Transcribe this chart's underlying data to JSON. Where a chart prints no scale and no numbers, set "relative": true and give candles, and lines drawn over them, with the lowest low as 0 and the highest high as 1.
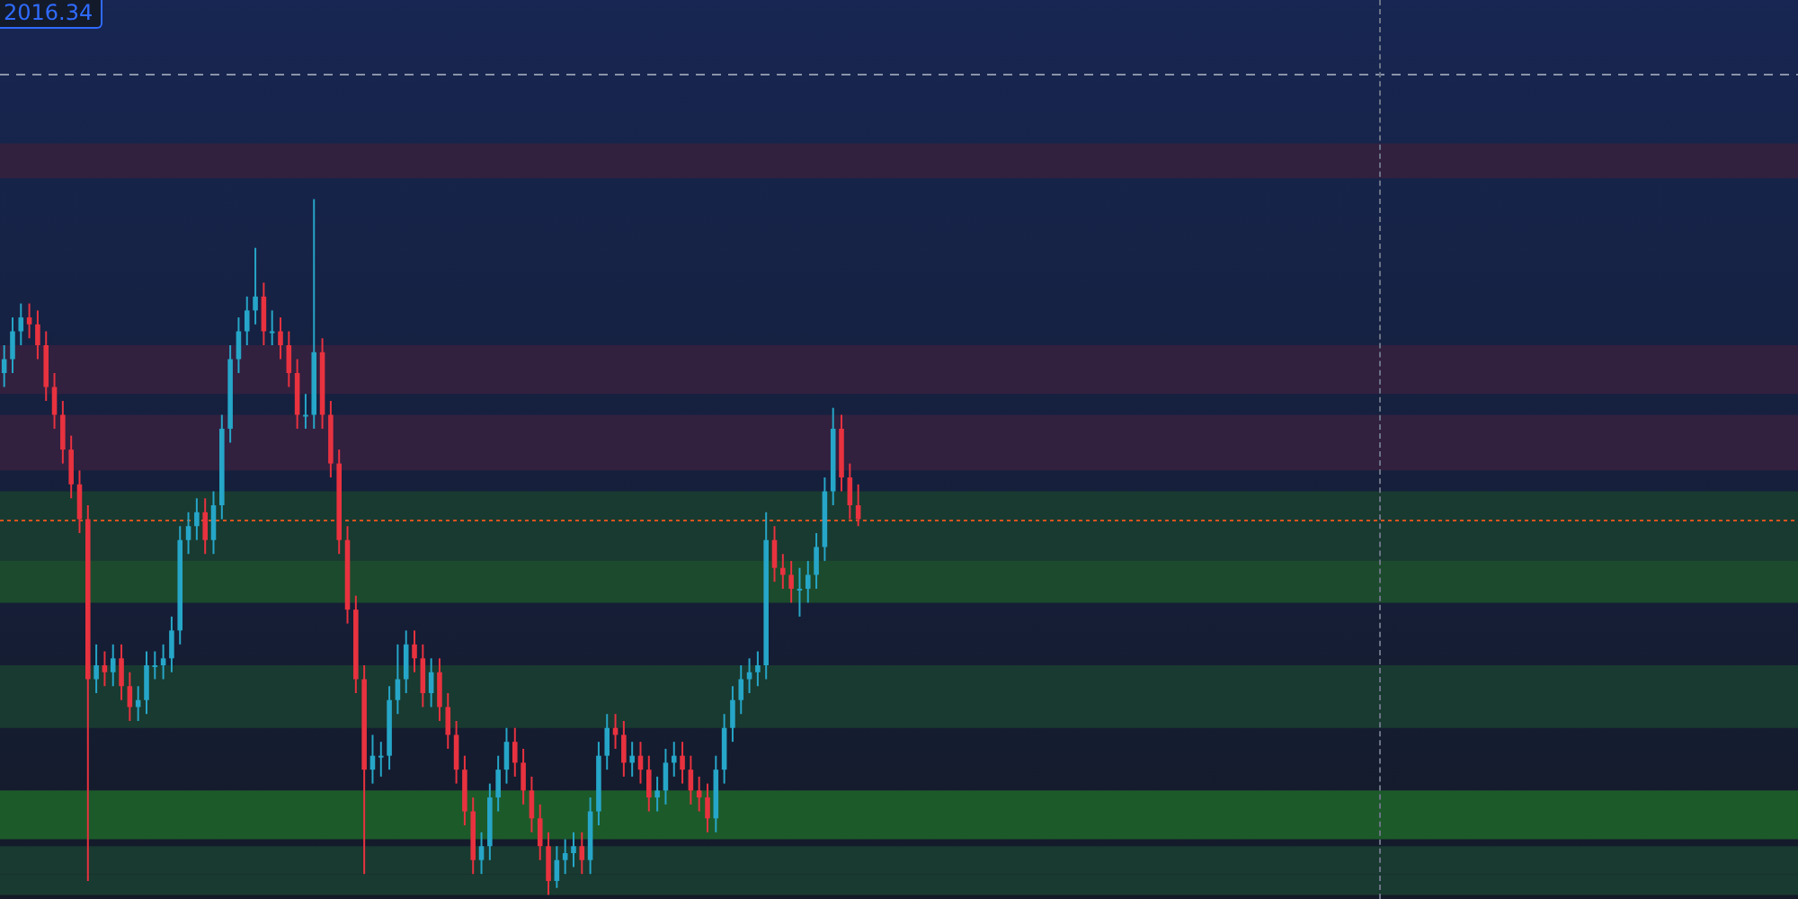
{
  "chart_data": {
    "type": "candlestick",
    "relative": true,
    "categories": [
      null,
      null,
      null,
      null,
      null,
      null,
      null,
      null,
      null,
      null,
      null,
      null,
      null,
      null,
      null,
      null,
      null,
      null,
      null,
      null,
      null,
      null,
      null,
      null,
      null,
      null,
      null,
      null,
      null,
      null,
      null,
      null,
      null,
      null,
      null,
      null,
      null,
      null,
      null,
      null,
      null,
      null,
      null,
      null,
      null,
      null,
      null,
      null,
      null,
      null,
      null,
      null,
      null,
      null,
      null,
      null,
      null,
      null,
      null,
      null,
      null,
      null,
      null,
      null,
      null,
      null,
      null,
      null,
      null,
      null,
      null,
      null,
      null,
      null,
      null,
      null,
      null,
      null,
      null,
      null,
      null,
      null,
      null,
      null,
      null,
      null,
      null,
      null,
      null,
      null,
      null,
      null,
      null,
      null,
      null,
      null,
      null,
      null,
      null,
      null,
      null,
      null,
      null
    ],
    "colors": [
      "#26a6c8",
      "#26a6c8",
      "#26a6c8",
      "#e8323f",
      "#e8323f",
      "#e8323f",
      "#e8323f",
      "#e8323f",
      "#e8323f",
      "#e8323f",
      "#e8323f",
      "#26a6c8",
      "#e8323f",
      "#26a6c8",
      "#e8323f",
      "#e8323f",
      "#26a6c8",
      "#26a6c8",
      "#26a6c8",
      "#26a6c8",
      "#26a6c8",
      "#26a6c8",
      "#26a6c8",
      "#26a6c8",
      "#e8323f",
      "#26a6c8",
      "#26a6c8",
      "#26a6c8",
      "#26a6c8",
      "#26a6c8",
      "#26a6c8",
      "#e8323f",
      "#26a6c8",
      "#e8323f",
      "#e8323f",
      "#e8323f",
      "#26a6c8",
      "#26a6c8",
      "#e8323f",
      "#e8323f",
      "#e8323f",
      "#e8323f",
      "#e8323f",
      "#e8323f",
      "#26a6c8",
      "#26a6c8",
      "#26a6c8",
      "#26a6c8",
      "#26a6c8",
      "#e8323f",
      "#e8323f",
      "#26a6c8",
      "#e8323f",
      "#e8323f",
      "#e8323f",
      "#e8323f",
      "#e8323f",
      "#26a6c8",
      "#26a6c8",
      "#26a6c8",
      "#26a6c8",
      "#e8323f",
      "#e8323f",
      "#e8323f",
      "#e8323f",
      "#e8323f",
      "#26a6c8",
      "#26a6c8",
      "#26a6c8",
      "#e8323f",
      "#26a6c8",
      "#26a6c8",
      "#26a6c8",
      "#e8323f",
      "#e8323f",
      "#26a6c8",
      "#e8323f",
      "#e8323f",
      "#26a6c8",
      "#26a6c8",
      "#26a6c8",
      "#e8323f",
      "#e8323f",
      "#e8323f",
      "#e8323f",
      "#26a6c8",
      "#26a6c8",
      "#26a6c8",
      "#26a6c8",
      "#26a6c8",
      "#26a6c8",
      "#26a6c8",
      "#e8323f",
      "#e8323f",
      "#e8323f",
      "#26a6c8",
      "#26a6c8",
      "#26a6c8",
      "#26a6c8",
      "#26a6c8",
      "#e8323f",
      "#e8323f",
      "#e8323f"
    ],
    "ohlc": [
      [
        0.75,
        0.79,
        0.73,
        0.77
      ],
      [
        0.77,
        0.83,
        0.75,
        0.81
      ],
      [
        0.81,
        0.85,
        0.79,
        0.83
      ],
      [
        0.83,
        0.85,
        0.8,
        0.82
      ],
      [
        0.82,
        0.84,
        0.77,
        0.79
      ],
      [
        0.79,
        0.81,
        0.71,
        0.73
      ],
      [
        0.73,
        0.75,
        0.67,
        0.69
      ],
      [
        0.69,
        0.71,
        0.62,
        0.64
      ],
      [
        0.64,
        0.66,
        0.57,
        0.59
      ],
      [
        0.59,
        0.61,
        0.52,
        0.54
      ],
      [
        0.54,
        0.56,
        0.02,
        0.31
      ],
      [
        0.31,
        0.36,
        0.29,
        0.33
      ],
      [
        0.33,
        0.35,
        0.3,
        0.32
      ],
      [
        0.32,
        0.36,
        0.3,
        0.34
      ],
      [
        0.34,
        0.36,
        0.28,
        0.3
      ],
      [
        0.3,
        0.32,
        0.25,
        0.27
      ],
      [
        0.27,
        0.3,
        0.25,
        0.28
      ],
      [
        0.28,
        0.35,
        0.26,
        0.33
      ],
      [
        0.33,
        0.35,
        0.31,
        0.33
      ],
      [
        0.33,
        0.36,
        0.31,
        0.34
      ],
      [
        0.34,
        0.4,
        0.32,
        0.38
      ],
      [
        0.38,
        0.53,
        0.36,
        0.51
      ],
      [
        0.51,
        0.55,
        0.49,
        0.53
      ],
      [
        0.53,
        0.57,
        0.51,
        0.55
      ],
      [
        0.55,
        0.57,
        0.49,
        0.51
      ],
      [
        0.51,
        0.58,
        0.49,
        0.56
      ],
      [
        0.56,
        0.69,
        0.54,
        0.67
      ],
      [
        0.67,
        0.79,
        0.65,
        0.77
      ],
      [
        0.77,
        0.83,
        0.75,
        0.81
      ],
      [
        0.81,
        0.86,
        0.79,
        0.84
      ],
      [
        0.84,
        0.93,
        0.82,
        0.86
      ],
      [
        0.86,
        0.88,
        0.79,
        0.81
      ],
      [
        0.81,
        0.84,
        0.79,
        0.81
      ],
      [
        0.81,
        0.83,
        0.77,
        0.79
      ],
      [
        0.79,
        0.81,
        0.73,
        0.75
      ],
      [
        0.75,
        0.77,
        0.67,
        0.69
      ],
      [
        0.69,
        0.72,
        0.67,
        0.69
      ],
      [
        0.69,
        1.0,
        0.67,
        0.78
      ],
      [
        0.78,
        0.8,
        0.67,
        0.69
      ],
      [
        0.69,
        0.71,
        0.6,
        0.62
      ],
      [
        0.62,
        0.64,
        0.49,
        0.51
      ],
      [
        0.51,
        0.53,
        0.39,
        0.41
      ],
      [
        0.41,
        0.43,
        0.29,
        0.31
      ],
      [
        0.31,
        0.33,
        0.03,
        0.18
      ],
      [
        0.18,
        0.23,
        0.16,
        0.2
      ],
      [
        0.2,
        0.22,
        0.17,
        0.2
      ],
      [
        0.2,
        0.3,
        0.18,
        0.28
      ],
      [
        0.28,
        0.36,
        0.26,
        0.31
      ],
      [
        0.31,
        0.38,
        0.29,
        0.36
      ],
      [
        0.36,
        0.38,
        0.32,
        0.34
      ],
      [
        0.34,
        0.36,
        0.27,
        0.29
      ],
      [
        0.29,
        0.34,
        0.27,
        0.32
      ],
      [
        0.32,
        0.34,
        0.25,
        0.27
      ],
      [
        0.27,
        0.29,
        0.21,
        0.23
      ],
      [
        0.23,
        0.25,
        0.16,
        0.18
      ],
      [
        0.18,
        0.2,
        0.1,
        0.12
      ],
      [
        0.12,
        0.14,
        0.03,
        0.05
      ],
      [
        0.05,
        0.09,
        0.03,
        0.07
      ],
      [
        0.07,
        0.16,
        0.05,
        0.14
      ],
      [
        0.14,
        0.2,
        0.12,
        0.18
      ],
      [
        0.18,
        0.24,
        0.16,
        0.22
      ],
      [
        0.22,
        0.24,
        0.17,
        0.19
      ],
      [
        0.19,
        0.21,
        0.13,
        0.15
      ],
      [
        0.15,
        0.17,
        0.09,
        0.11
      ],
      [
        0.11,
        0.13,
        0.05,
        0.07
      ],
      [
        0.07,
        0.09,
        0,
        0.02
      ],
      [
        0.02,
        0.07,
        0.01,
        0.05
      ],
      [
        0.05,
        0.08,
        0.03,
        0.06
      ],
      [
        0.06,
        0.09,
        0.04,
        0.07
      ],
      [
        0.07,
        0.09,
        0.03,
        0.05
      ],
      [
        0.05,
        0.14,
        0.03,
        0.12
      ],
      [
        0.12,
        0.22,
        0.1,
        0.2
      ],
      [
        0.2,
        0.26,
        0.18,
        0.24
      ],
      [
        0.24,
        0.26,
        0.21,
        0.23
      ],
      [
        0.23,
        0.25,
        0.17,
        0.19
      ],
      [
        0.19,
        0.22,
        0.17,
        0.2
      ],
      [
        0.2,
        0.22,
        0.16,
        0.18
      ],
      [
        0.18,
        0.2,
        0.12,
        0.14
      ],
      [
        0.14,
        0.17,
        0.12,
        0.15
      ],
      [
        0.15,
        0.21,
        0.13,
        0.19
      ],
      [
        0.19,
        0.22,
        0.17,
        0.2
      ],
      [
        0.2,
        0.22,
        0.16,
        0.18
      ],
      [
        0.18,
        0.2,
        0.13,
        0.15
      ],
      [
        0.15,
        0.17,
        0.12,
        0.14
      ],
      [
        0.14,
        0.16,
        0.09,
        0.11
      ],
      [
        0.11,
        0.2,
        0.09,
        0.18
      ],
      [
        0.18,
        0.26,
        0.16,
        0.24
      ],
      [
        0.24,
        0.3,
        0.22,
        0.28
      ],
      [
        0.28,
        0.33,
        0.26,
        0.31
      ],
      [
        0.31,
        0.34,
        0.29,
        0.32
      ],
      [
        0.32,
        0.35,
        0.3,
        0.33
      ],
      [
        0.33,
        0.55,
        0.31,
        0.51
      ],
      [
        0.51,
        0.53,
        0.45,
        0.47
      ],
      [
        0.47,
        0.49,
        0.44,
        0.46
      ],
      [
        0.46,
        0.48,
        0.42,
        0.44
      ],
      [
        0.44,
        0.47,
        0.4,
        0.44
      ],
      [
        0.44,
        0.48,
        0.42,
        0.46
      ],
      [
        0.46,
        0.52,
        0.44,
        0.5
      ],
      [
        0.5,
        0.6,
        0.48,
        0.58
      ],
      [
        0.58,
        0.7,
        0.56,
        0.67
      ],
      [
        0.67,
        0.69,
        0.58,
        0.6
      ],
      [
        0.6,
        0.62,
        0.54,
        0.56
      ],
      [
        0.56,
        0.59,
        0.53,
        0.54
      ]
    ],
    "ref_lines": [
      {
        "axis": "y",
        "value": 1.18,
        "color": "#8a93a8",
        "line_style": "dashed"
      },
      {
        "axis": "y",
        "value": 0.54,
        "color": "#d9531e",
        "line_style": "dotted"
      }
    ],
    "bands": [
      {
        "axis": "y",
        "from": 1.03,
        "to": 1.08,
        "color": "#32203f"
      },
      {
        "axis": "y",
        "from": 0.72,
        "to": 0.79,
        "color": "#32203f"
      },
      {
        "axis": "y",
        "from": 0.61,
        "to": 0.69,
        "color": "#32203f"
      },
      {
        "axis": "y",
        "from": 0.48,
        "to": 0.58,
        "color": "#193a30"
      },
      {
        "axis": "y",
        "from": 0.42,
        "to": 0.48,
        "color": "#1c4a2c"
      },
      {
        "axis": "y",
        "from": 0.24,
        "to": 0.33,
        "color": "#193a30"
      },
      {
        "axis": "y",
        "from": 0.08,
        "to": 0.15,
        "color": "#1d5a2a"
      },
      {
        "axis": "y",
        "from": 0.03,
        "to": 0.07,
        "color": "#193a30"
      },
      {
        "axis": "y",
        "from": 0,
        "to": 0.03,
        "color": "#193a30"
      }
    ],
    "annotations": [
      "2016.34"
    ],
    "legend": false,
    "tick_labels": false
  }
}
